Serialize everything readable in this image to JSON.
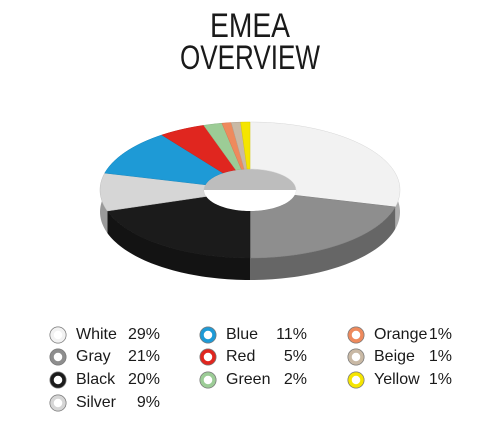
{
  "chart_data": {
    "type": "pie",
    "donut": true,
    "title": [
      "EMEA",
      "OVERVIEW"
    ],
    "categories": [
      "White",
      "Gray",
      "Black",
      "Silver",
      "Blue",
      "Red",
      "Green",
      "Orange",
      "Beige",
      "Yellow"
    ],
    "values": [
      29,
      21,
      20,
      9,
      11,
      5,
      2,
      1,
      1,
      1
    ],
    "value_labels": [
      "29%",
      "21%",
      "20%",
      "9%",
      "11%",
      "5%",
      "2%",
      "1%",
      "1%",
      "1%"
    ],
    "colors": [
      "#f2f2f2",
      "#8e8e8e",
      "#1b1b1b",
      "#d6d6d6",
      "#1e9ad6",
      "#e0261f",
      "#9ccc96",
      "#ee8a5d",
      "#c9b9a5",
      "#f5e500"
    ]
  }
}
